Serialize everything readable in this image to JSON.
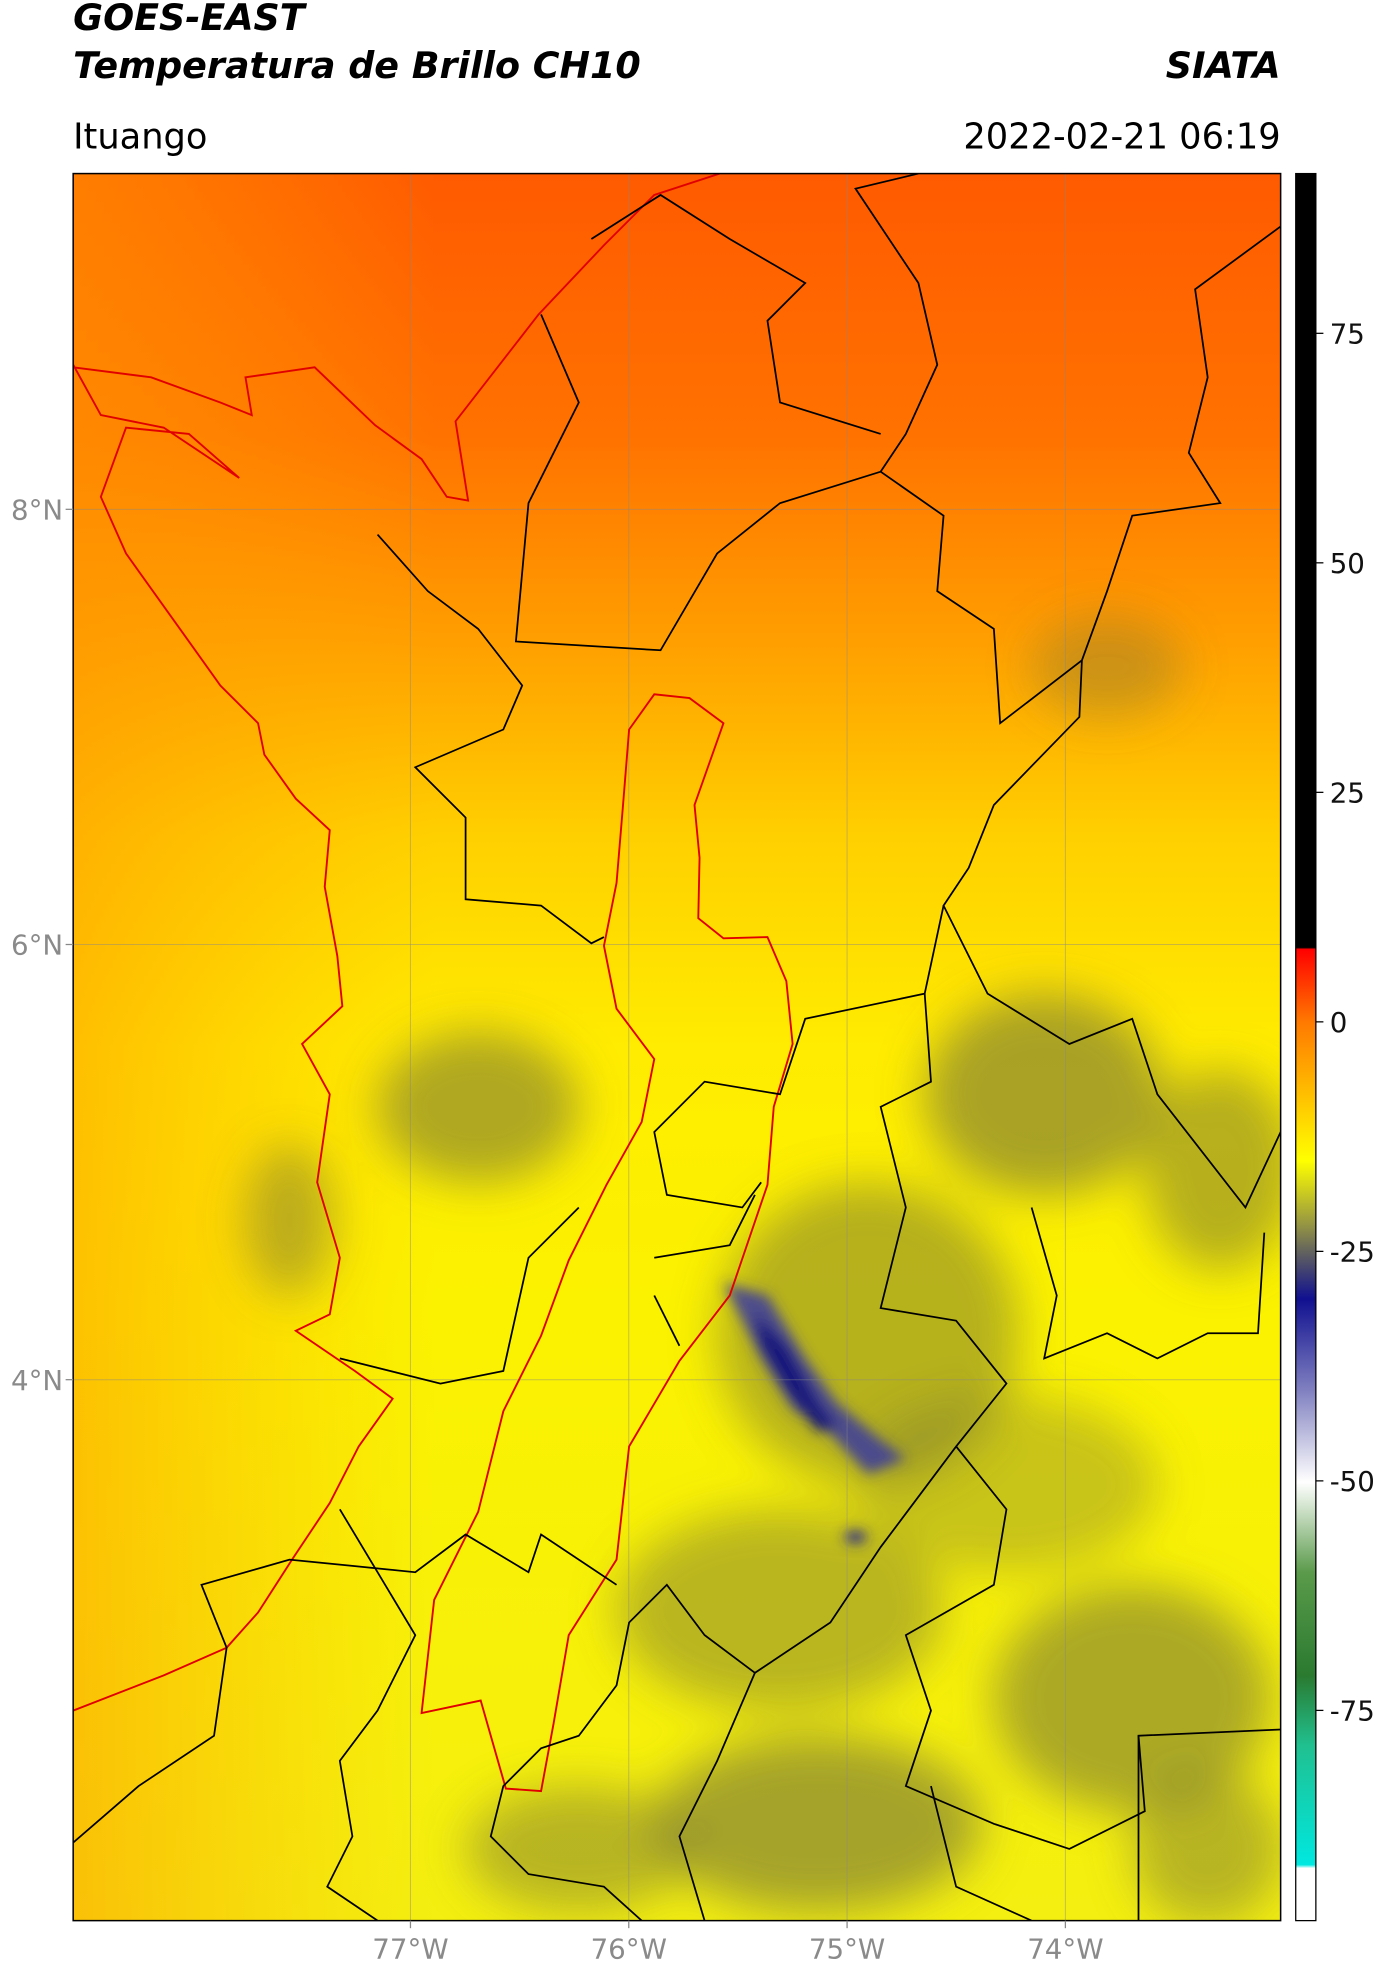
{
  "header": {
    "title": "GOES-EAST",
    "subtitle": "Temperatura de Brillo CH10",
    "agency": "SIATA",
    "location": "Ituango",
    "datetime": "2022-02-21 06:19"
  },
  "map": {
    "lon_range": [
      -78.545,
      -73.014
    ],
    "lat_range": [
      1.514,
      9.543
    ],
    "grid": true,
    "lon_ticks": [
      {
        "value": -77,
        "label": "77°W"
      },
      {
        "value": -76,
        "label": "76°W"
      },
      {
        "value": -75,
        "label": "75°W"
      },
      {
        "value": -74,
        "label": "74°W"
      }
    ],
    "lat_ticks": [
      {
        "value": 8,
        "label": "8°N"
      },
      {
        "value": 6,
        "label": "6°N"
      },
      {
        "value": 4,
        "label": "4°N"
      }
    ]
  },
  "colorbar": {
    "range": [
      -97.9,
      92.4
    ],
    "ticks": [
      75,
      50,
      25,
      0,
      -25,
      -50,
      -75
    ]
  }
}
